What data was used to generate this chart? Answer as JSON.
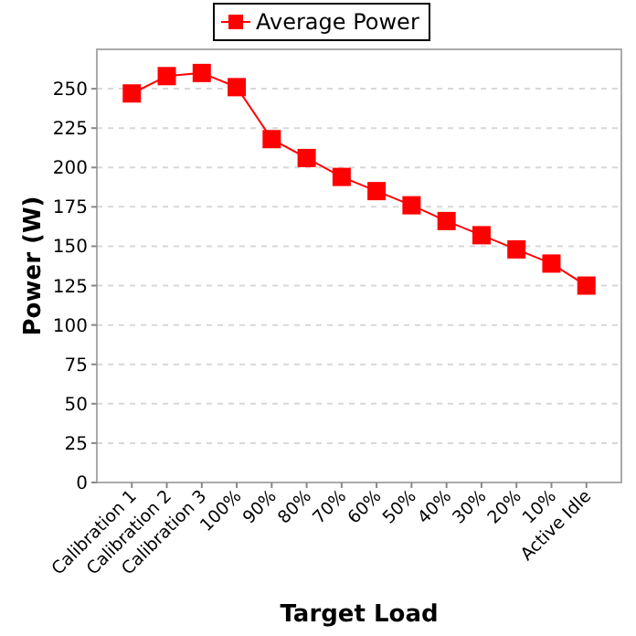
{
  "chart_data": {
    "type": "line",
    "xlabel": "Target Load",
    "ylabel": "Power (W)",
    "categories": [
      "Calibration 1",
      "Calibration 2",
      "Calibration 3",
      "100%",
      "90%",
      "80%",
      "70%",
      "60%",
      "50%",
      "40%",
      "30%",
      "20%",
      "10%",
      "Active Idle"
    ],
    "series": [
      {
        "name": "Average Power",
        "color": "#ff0000",
        "values": [
          247,
          258,
          260,
          251,
          218,
          206,
          194,
          185,
          176,
          166,
          157,
          148,
          139,
          125
        ]
      }
    ],
    "ylim": [
      0,
      275
    ],
    "yticks": [
      0,
      25,
      50,
      75,
      100,
      125,
      150,
      175,
      200,
      225,
      250
    ],
    "grid": "y",
    "legend": "top",
    "marker": "square",
    "line_style": "solid"
  }
}
